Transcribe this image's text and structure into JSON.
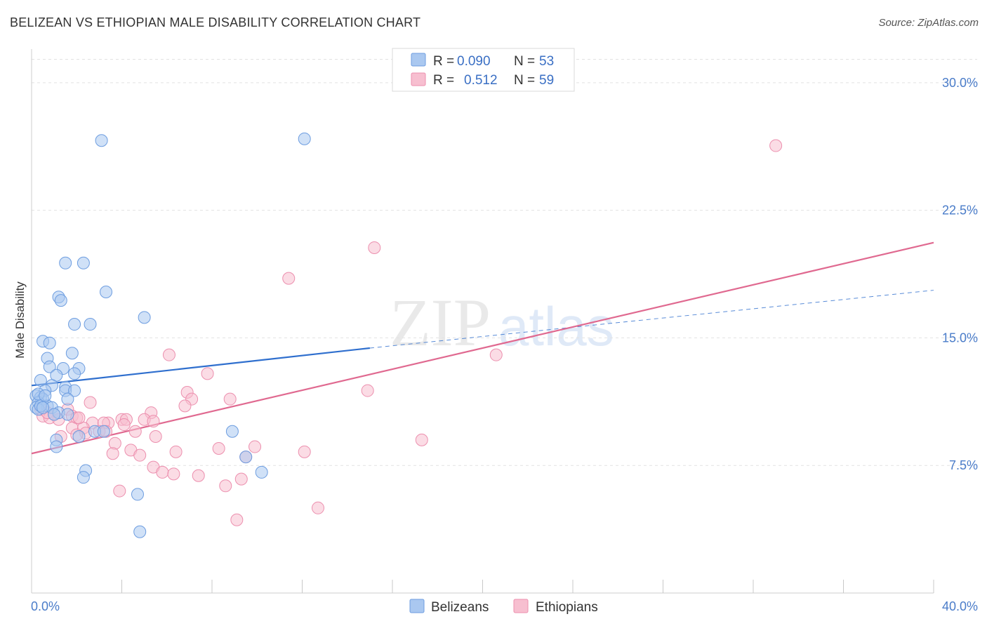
{
  "title": "BELIZEAN VS ETHIOPIAN MALE DISABILITY CORRELATION CHART",
  "source": "Source: ZipAtlas.com",
  "watermark": {
    "zip": "ZIP",
    "atlas": "atlas"
  },
  "colors": {
    "belizean_fill": "#aac8f0",
    "belizean_stroke": "#6d9de0",
    "belizean_line": "#2f6fce",
    "ethiopian_fill": "#f7bfd0",
    "ethiopian_stroke": "#ec8fae",
    "ethiopian_line": "#e06990",
    "tick_label": "#4a7cc9",
    "grid": "#e2e2e2"
  },
  "legend": {
    "rows": [
      {
        "r_label": "R =",
        "r_value": "0.090",
        "n_label": "N =",
        "n_value": "53"
      },
      {
        "r_label": "R =",
        "r_value": "0.512",
        "n_label": "N =",
        "n_value": "59"
      }
    ]
  },
  "chart_data": {
    "type": "scatter",
    "title": "BELIZEAN VS ETHIOPIAN MALE DISABILITY CORRELATION CHART",
    "xlabel": "",
    "ylabel": "Male Disability",
    "xlim": [
      0,
      40
    ],
    "ylim": [
      0,
      31.5
    ],
    "x_tick_labels": [
      {
        "value": 0,
        "label": "0.0%"
      },
      {
        "value": 40,
        "label": "40.0%"
      }
    ],
    "y_tick_labels": [
      {
        "value": 7.5,
        "label": "7.5%"
      },
      {
        "value": 15.0,
        "label": "15.0%"
      },
      {
        "value": 22.5,
        "label": "22.5%"
      },
      {
        "value": 30.0,
        "label": "30.0%"
      }
    ],
    "series": [
      {
        "name": "Belizeans",
        "r": 0.09,
        "n": 53,
        "trend": {
          "x0": 0,
          "y0": 12.2,
          "x1": 15.0,
          "y1": 14.4,
          "dashed_to_x": 40,
          "dashed_to_y": 17.8
        },
        "points": [
          [
            3.1,
            26.6
          ],
          [
            12.1,
            26.7
          ],
          [
            1.5,
            19.4
          ],
          [
            2.3,
            19.4
          ],
          [
            1.2,
            17.4
          ],
          [
            1.3,
            17.2
          ],
          [
            3.3,
            17.7
          ],
          [
            5.0,
            16.2
          ],
          [
            1.9,
            15.8
          ],
          [
            2.6,
            15.8
          ],
          [
            0.5,
            14.8
          ],
          [
            0.8,
            14.7
          ],
          [
            1.8,
            14.1
          ],
          [
            0.7,
            13.8
          ],
          [
            0.8,
            13.3
          ],
          [
            1.4,
            13.2
          ],
          [
            2.1,
            13.2
          ],
          [
            1.1,
            12.8
          ],
          [
            1.9,
            12.9
          ],
          [
            0.4,
            12.5
          ],
          [
            0.9,
            12.2
          ],
          [
            1.5,
            12.1
          ],
          [
            1.5,
            11.9
          ],
          [
            0.6,
            11.9
          ],
          [
            1.9,
            11.9
          ],
          [
            0.2,
            11.6
          ],
          [
            0.4,
            11.5
          ],
          [
            0.5,
            11.4
          ],
          [
            1.6,
            11.4
          ],
          [
            0.3,
            11.2
          ],
          [
            0.7,
            11.0
          ],
          [
            0.2,
            10.9
          ],
          [
            0.3,
            10.8
          ],
          [
            0.9,
            10.9
          ],
          [
            1.2,
            10.6
          ],
          [
            1.0,
            10.5
          ],
          [
            1.6,
            10.5
          ],
          [
            0.4,
            11.0
          ],
          [
            0.5,
            10.9
          ],
          [
            1.1,
            9.0
          ],
          [
            2.8,
            9.5
          ],
          [
            3.2,
            9.5
          ],
          [
            1.1,
            8.6
          ],
          [
            2.1,
            9.2
          ],
          [
            8.9,
            9.5
          ],
          [
            9.5,
            8.0
          ],
          [
            2.4,
            7.2
          ],
          [
            2.3,
            6.8
          ],
          [
            10.2,
            7.1
          ],
          [
            4.7,
            5.8
          ],
          [
            4.8,
            3.6
          ],
          [
            0.3,
            11.7
          ],
          [
            0.6,
            11.6
          ]
        ]
      },
      {
        "name": "Ethiopians",
        "r": 0.512,
        "n": 59,
        "trend": {
          "x0": 0,
          "y0": 8.2,
          "x1": 40,
          "y1": 20.6
        },
        "points": [
          [
            33.0,
            26.3
          ],
          [
            15.2,
            20.3
          ],
          [
            11.4,
            18.5
          ],
          [
            6.1,
            14.0
          ],
          [
            20.6,
            14.0
          ],
          [
            7.8,
            12.9
          ],
          [
            14.9,
            11.9
          ],
          [
            6.9,
            11.8
          ],
          [
            7.1,
            11.4
          ],
          [
            8.8,
            11.4
          ],
          [
            2.6,
            11.2
          ],
          [
            6.8,
            11.0
          ],
          [
            1.6,
            10.8
          ],
          [
            0.5,
            10.4
          ],
          [
            1.8,
            10.4
          ],
          [
            2.0,
            10.3
          ],
          [
            0.8,
            10.3
          ],
          [
            1.2,
            10.2
          ],
          [
            5.3,
            10.6
          ],
          [
            4.0,
            10.2
          ],
          [
            4.2,
            10.2
          ],
          [
            3.4,
            10.0
          ],
          [
            2.7,
            10.0
          ],
          [
            5.0,
            10.2
          ],
          [
            5.4,
            10.1
          ],
          [
            3.2,
            10.0
          ],
          [
            1.8,
            9.7
          ],
          [
            2.3,
            9.7
          ],
          [
            3.0,
            9.5
          ],
          [
            3.3,
            9.5
          ],
          [
            4.6,
            9.5
          ],
          [
            2.4,
            9.4
          ],
          [
            2.0,
            9.3
          ],
          [
            1.3,
            9.2
          ],
          [
            5.5,
            9.2
          ],
          [
            17.3,
            9.0
          ],
          [
            3.7,
            8.8
          ],
          [
            8.3,
            8.5
          ],
          [
            9.9,
            8.6
          ],
          [
            4.4,
            8.4
          ],
          [
            6.4,
            8.3
          ],
          [
            12.1,
            8.3
          ],
          [
            3.6,
            8.2
          ],
          [
            4.8,
            8.1
          ],
          [
            9.5,
            8.0
          ],
          [
            5.4,
            7.4
          ],
          [
            5.8,
            7.1
          ],
          [
            6.3,
            7.0
          ],
          [
            7.4,
            6.9
          ],
          [
            9.3,
            6.7
          ],
          [
            8.6,
            6.3
          ],
          [
            3.9,
            6.0
          ],
          [
            12.7,
            5.0
          ],
          [
            9.1,
            4.3
          ],
          [
            0.4,
            10.8
          ],
          [
            0.7,
            10.6
          ],
          [
            1.0,
            10.5
          ],
          [
            2.1,
            10.3
          ],
          [
            4.1,
            9.9
          ]
        ]
      }
    ]
  }
}
